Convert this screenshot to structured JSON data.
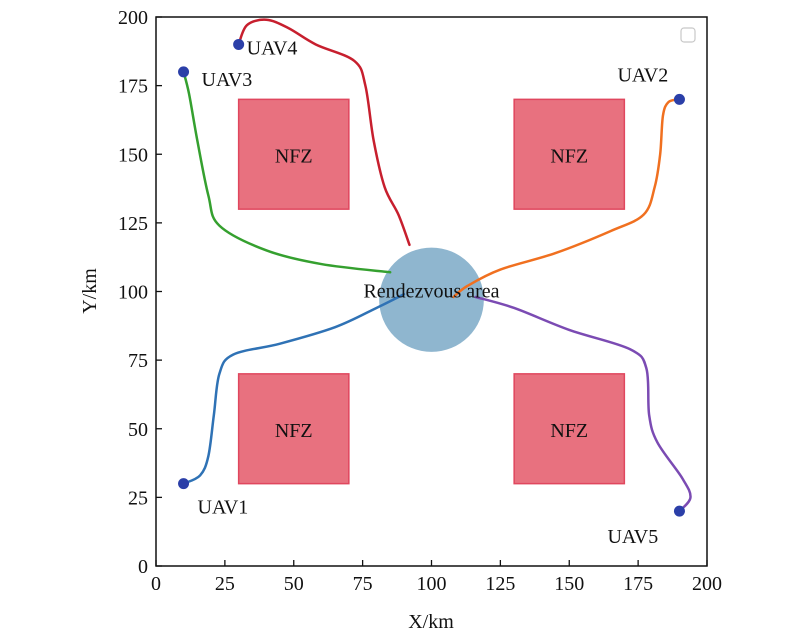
{
  "chart_data": {
    "type": "line",
    "title": "",
    "xlabel": "X/km",
    "ylabel": "Y/km",
    "xlim": [
      0,
      200
    ],
    "ylim": [
      0,
      200
    ],
    "xticks": [
      0,
      25,
      50,
      75,
      100,
      125,
      150,
      175,
      200
    ],
    "yticks": [
      0,
      25,
      50,
      75,
      100,
      125,
      150,
      175,
      200
    ],
    "grid": false,
    "legend": {
      "placement": "top-right",
      "entries": []
    },
    "no_fly_zones": [
      {
        "label": "NFZ",
        "x": [
          30,
          70
        ],
        "y": [
          130,
          170
        ]
      },
      {
        "label": "NFZ",
        "x": [
          130,
          170
        ],
        "y": [
          130,
          170
        ]
      },
      {
        "label": "NFZ",
        "x": [
          30,
          70
        ],
        "y": [
          30,
          70
        ]
      },
      {
        "label": "NFZ",
        "x": [
          130,
          170
        ],
        "y": [
          30,
          70
        ]
      }
    ],
    "rendezvous": {
      "label": "Rendezvous area",
      "center": [
        100,
        97
      ],
      "radius": 19,
      "color": "#8fb6cf"
    },
    "nfz_color": "#e8717f",
    "start_marker_color": "#2b3fa8",
    "series": [
      {
        "name": "UAV1",
        "color": "#2f72b5",
        "points": [
          [
            10,
            30
          ],
          [
            16,
            33
          ],
          [
            19,
            40
          ],
          [
            21,
            55
          ],
          [
            23,
            70
          ],
          [
            28,
            77
          ],
          [
            45,
            81
          ],
          [
            65,
            87
          ],
          [
            80,
            94
          ],
          [
            90,
            99
          ]
        ]
      },
      {
        "name": "UAV2",
        "color": "#f07020",
        "points": [
          [
            190,
            170
          ],
          [
            186,
            169
          ],
          [
            184,
            164
          ],
          [
            183,
            150
          ],
          [
            181,
            138
          ],
          [
            177,
            128
          ],
          [
            165,
            122
          ],
          [
            145,
            114
          ],
          [
            125,
            108
          ],
          [
            113,
            102
          ],
          [
            108,
            98
          ]
        ]
      },
      {
        "name": "UAV3",
        "color": "#35a02f",
        "points": [
          [
            10,
            180
          ],
          [
            12,
            172
          ],
          [
            15,
            155
          ],
          [
            19,
            135
          ],
          [
            23,
            124
          ],
          [
            40,
            115
          ],
          [
            60,
            110
          ],
          [
            85,
            107
          ]
        ]
      },
      {
        "name": "UAV4",
        "color": "#c71f2e",
        "points": [
          [
            30,
            190
          ],
          [
            33,
            197
          ],
          [
            40,
            199
          ],
          [
            48,
            196
          ],
          [
            58,
            190
          ],
          [
            72,
            184
          ],
          [
            76,
            175
          ],
          [
            79,
            155
          ],
          [
            83,
            138
          ],
          [
            88,
            128
          ],
          [
            92,
            117
          ]
        ]
      },
      {
        "name": "UAV5",
        "color": "#7b4bb3",
        "points": [
          [
            190,
            20
          ],
          [
            194,
            25
          ],
          [
            191,
            32
          ],
          [
            182,
            45
          ],
          [
            179,
            55
          ],
          [
            178,
            72
          ],
          [
            172,
            79
          ],
          [
            150,
            86
          ],
          [
            130,
            94
          ],
          [
            116,
            98
          ]
        ]
      }
    ]
  }
}
